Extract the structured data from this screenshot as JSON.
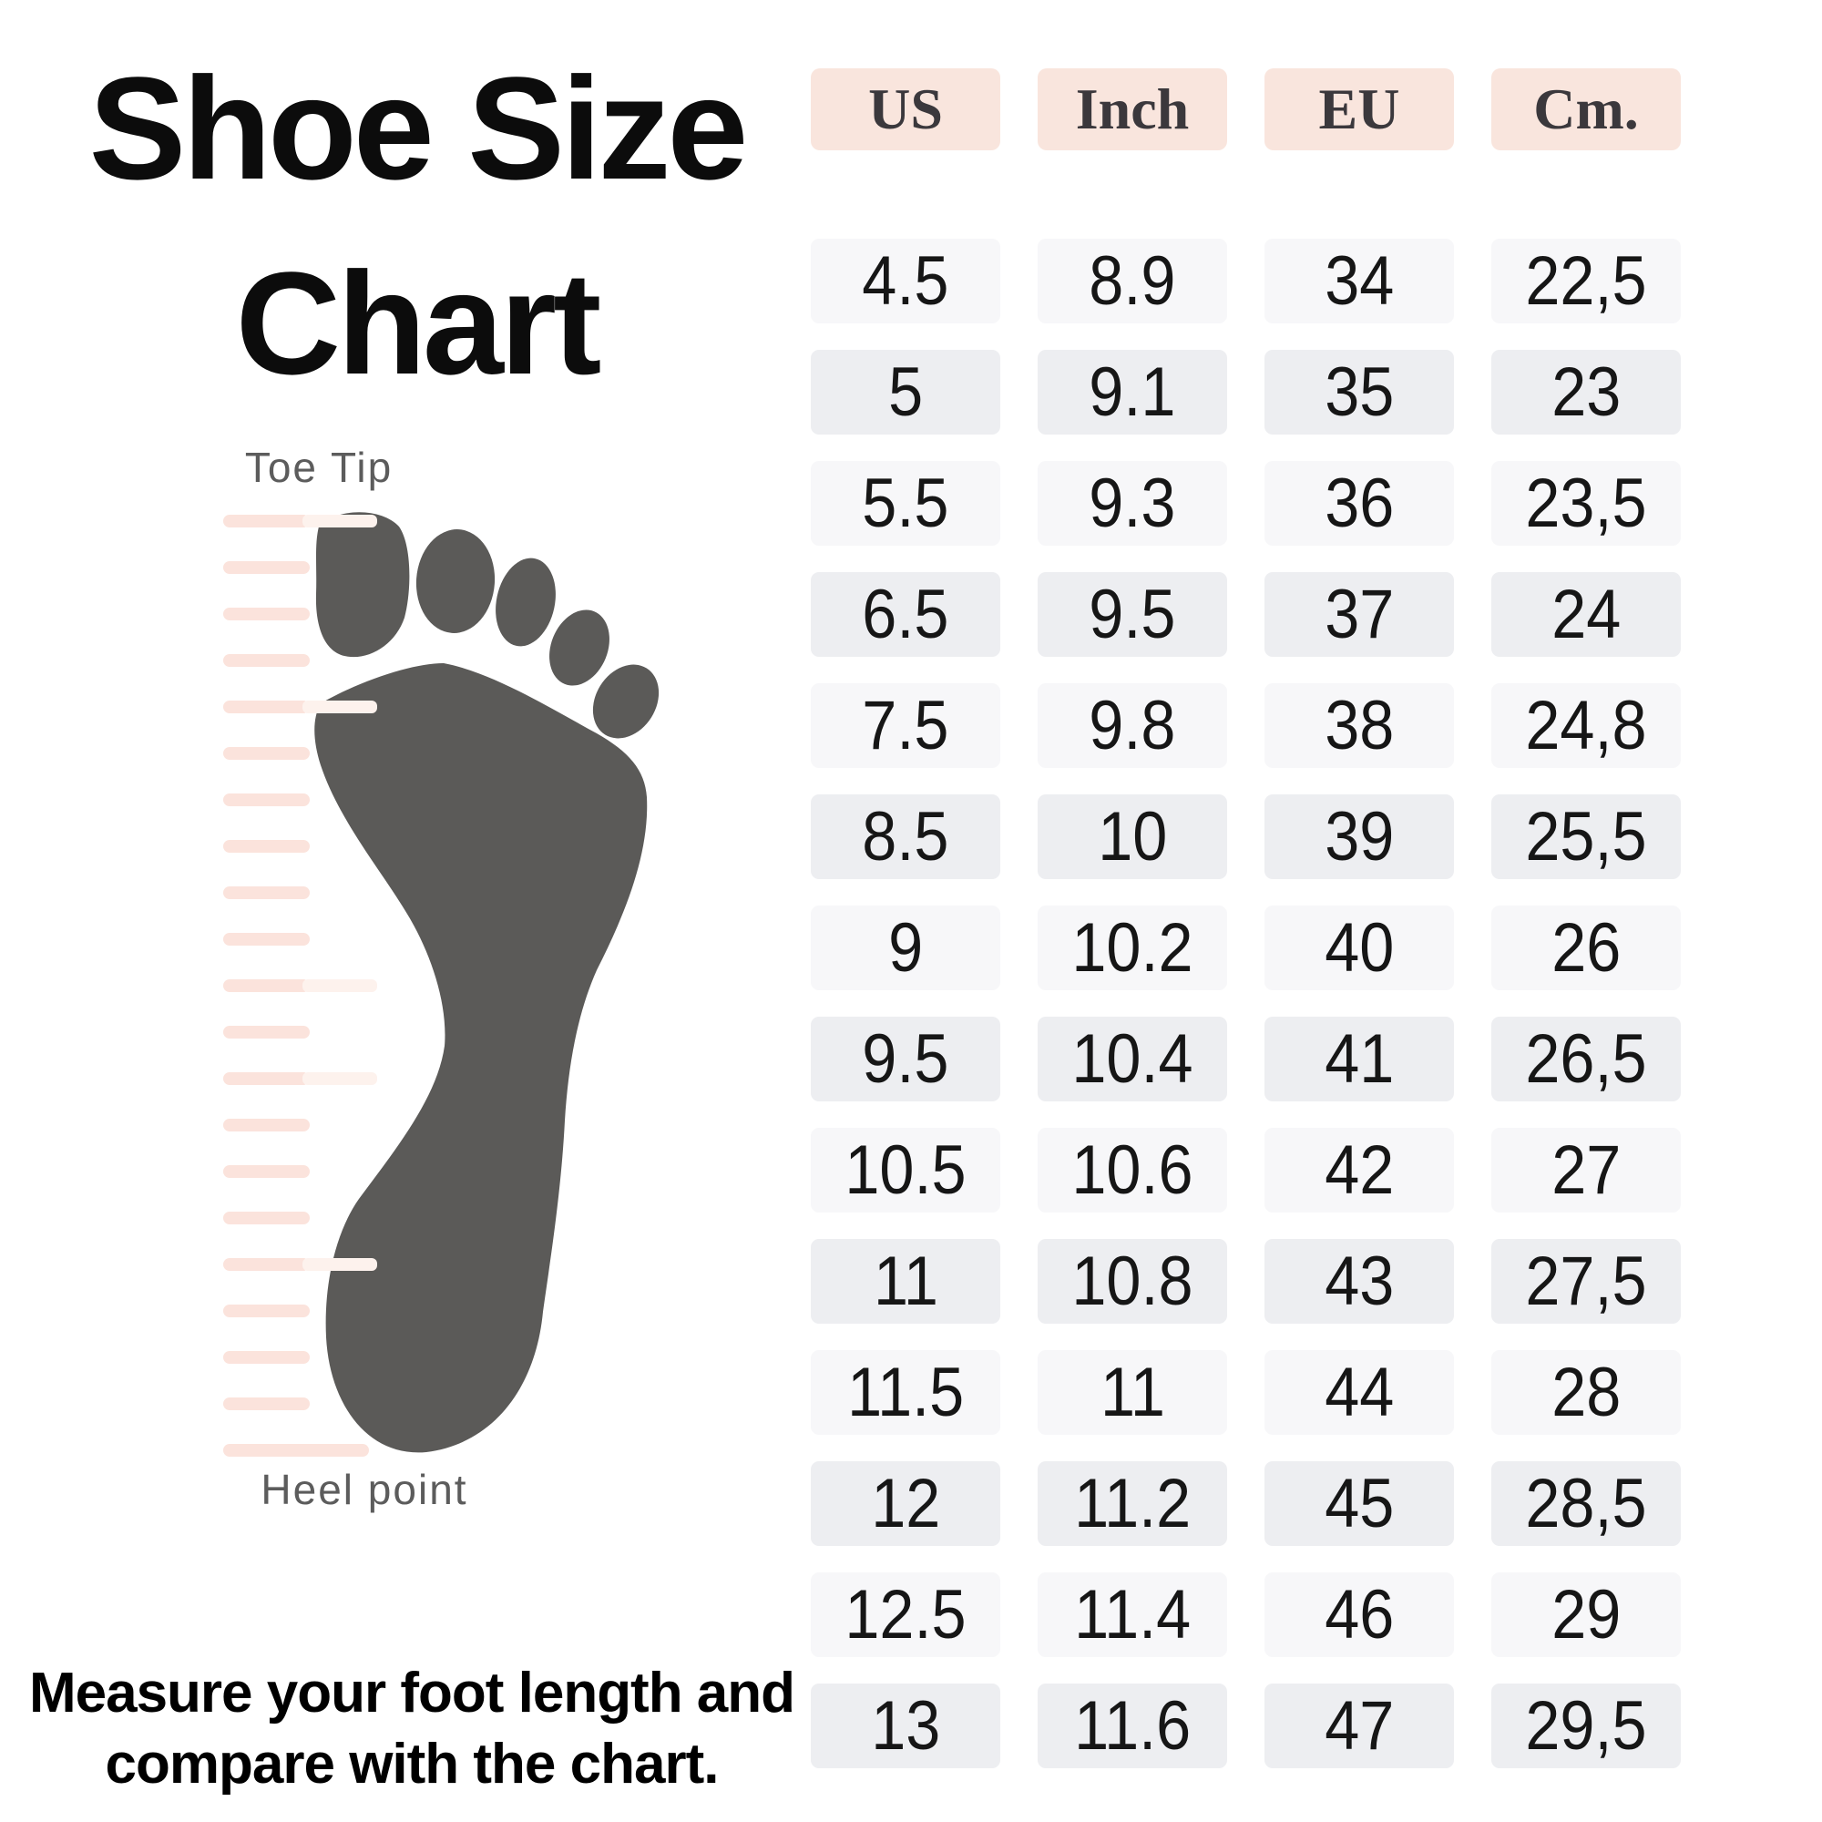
{
  "title": {
    "line1": "Shoe Size",
    "line2": "Chart"
  },
  "diagram": {
    "toe_tip_label": "Toe Tip",
    "heel_point_label": "Heel point",
    "icon": "footprint-with-ruler"
  },
  "footer": {
    "line1": "Measure your foot length and",
    "line2": "compare with the chart."
  },
  "table": {
    "columns": [
      {
        "label": "US"
      },
      {
        "label": "Inch"
      },
      {
        "label": "EU"
      },
      {
        "label": "Cm."
      }
    ],
    "rows": [
      [
        "4.5",
        "8.9",
        "34",
        "22,5"
      ],
      [
        "5",
        "9.1",
        "35",
        "23"
      ],
      [
        "5.5",
        "9.3",
        "36",
        "23,5"
      ],
      [
        "6.5",
        "9.5",
        "37",
        "24"
      ],
      [
        "7.5",
        "9.8",
        "38",
        "24,8"
      ],
      [
        "8.5",
        "10",
        "39",
        "25,5"
      ],
      [
        "9",
        "10.2",
        "40",
        "26"
      ],
      [
        "9.5",
        "10.4",
        "41",
        "26,5"
      ],
      [
        "10.5",
        "10.6",
        "42",
        "27"
      ],
      [
        "11",
        "10.8",
        "43",
        "27,5"
      ],
      [
        "11.5",
        "11",
        "44",
        "28"
      ],
      [
        "12",
        "11.2",
        "45",
        "28,5"
      ],
      [
        "12.5",
        "11.4",
        "46",
        "29"
      ],
      [
        "13",
        "11.6",
        "47",
        "29,5"
      ]
    ]
  },
  "colors": {
    "accent_pink": "#f9e5dd",
    "row_light": "#f7f7f9",
    "row_dark": "#edeef1",
    "foot_gray": "#5b5a58",
    "ruler_pink": "#fbe3dc",
    "ruler_highlight": "#fdf2ed",
    "title_black": "#0c0c0c",
    "number_color": "#161616",
    "header_text": "#3b383c",
    "label_gray": "#5c5c5c"
  }
}
